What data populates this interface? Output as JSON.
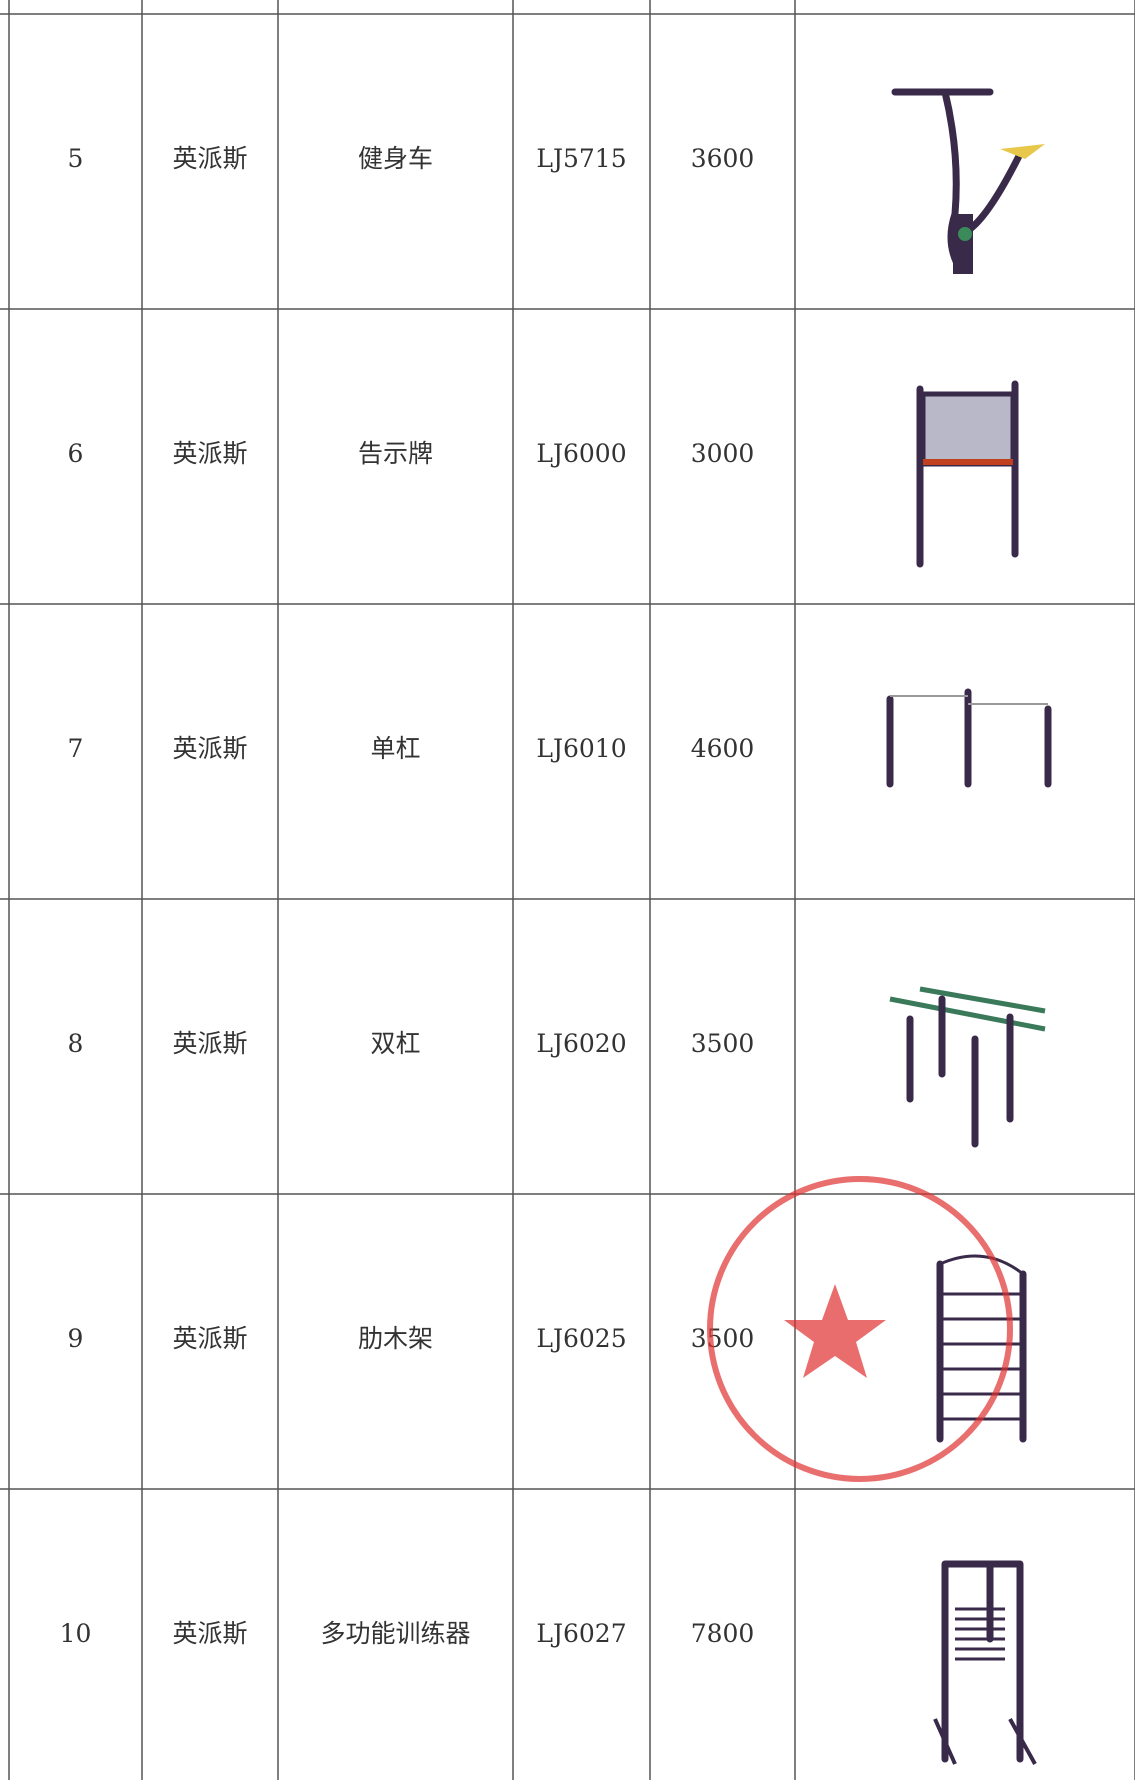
{
  "table": {
    "rows": [
      [
        "5",
        "英派斯",
        "健身车",
        "LJ5715",
        "3600"
      ],
      [
        "6",
        "英派斯",
        "告示牌",
        "LJ6000",
        "3000"
      ],
      [
        "7",
        "英派斯",
        "单杠",
        "LJ6010",
        "4600"
      ],
      [
        "8",
        "英派斯",
        "双杠",
        "LJ6020",
        "3500"
      ],
      [
        "9",
        "英派斯",
        "肋木架",
        "LJ6025",
        "3500"
      ],
      [
        "10",
        "英派斯",
        "多功能训练器",
        "LJ6027",
        "7800"
      ]
    ]
  }
}
